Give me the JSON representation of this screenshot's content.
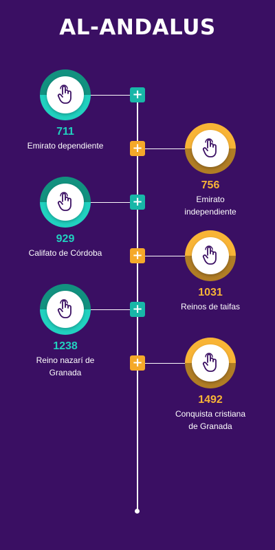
{
  "title": "AL-ANDALUS",
  "colors": {
    "background": "#3a0f63",
    "teal": "#21d1bf",
    "gold": "#f8b436",
    "line": "#ffffff"
  },
  "plus_symbol": "+",
  "icon_name": "hand-pointer-icon",
  "events": [
    {
      "year": "711",
      "label_lines": [
        "Emirato dependiente"
      ],
      "color": "teal",
      "side": "left"
    },
    {
      "year": "756",
      "label_lines": [
        "Emirato",
        "independiente"
      ],
      "color": "gold",
      "side": "right"
    },
    {
      "year": "929",
      "label_lines": [
        "Califato de Córdoba"
      ],
      "color": "teal",
      "side": "left"
    },
    {
      "year": "1031",
      "label_lines": [
        "Reinos de taifas"
      ],
      "color": "gold",
      "side": "right"
    },
    {
      "year": "1238",
      "label_lines": [
        "Reino nazarí de",
        "Granada"
      ],
      "color": "teal",
      "side": "left"
    },
    {
      "year": "1492",
      "label_lines": [
        "Conquista cristiana",
        "de Granada"
      ],
      "color": "gold",
      "side": "right"
    }
  ]
}
